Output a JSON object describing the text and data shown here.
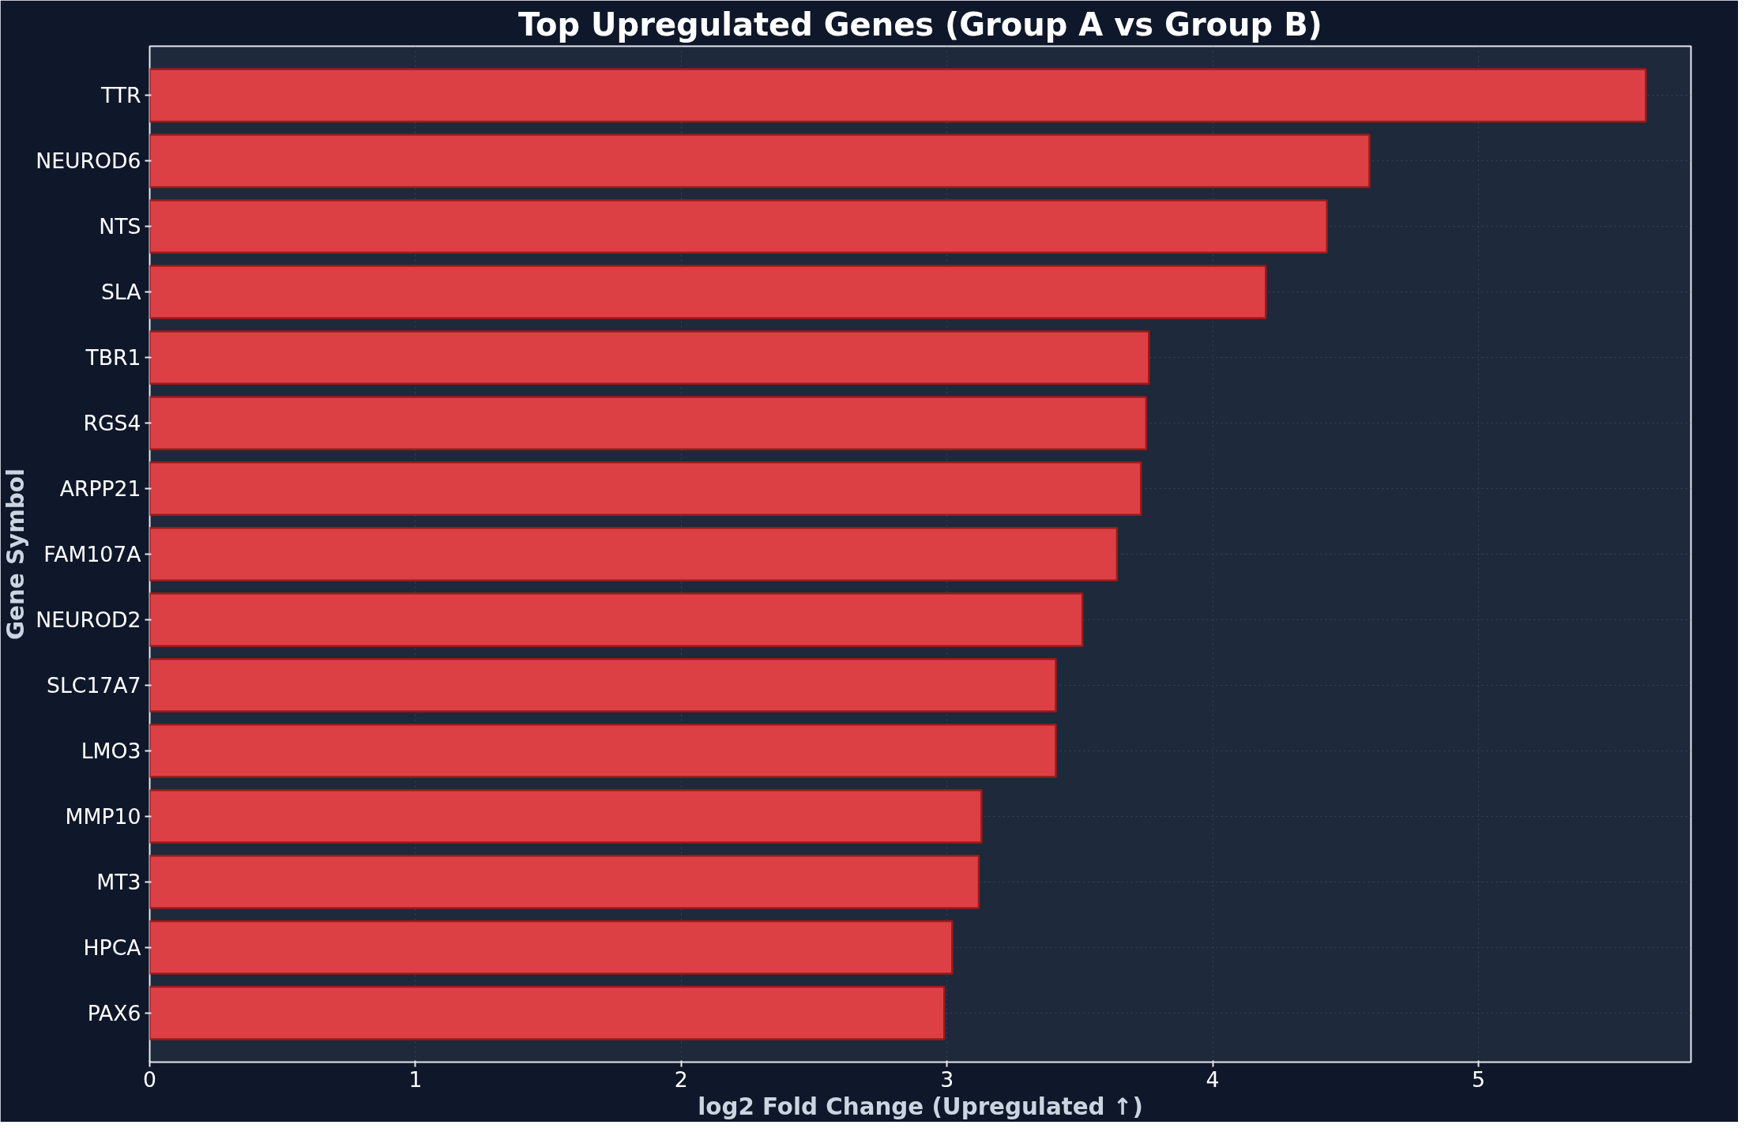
{
  "chart_data": {
    "type": "bar",
    "orientation": "horizontal",
    "title": "Top Upregulated Genes (Group A vs Group B)",
    "xlabel": "log2 Fold Change (Upregulated ↑)",
    "ylabel": "Gene Symbol",
    "categories": [
      "TTR",
      "NEUROD6",
      "NTS",
      "SLA",
      "TBR1",
      "RGS4",
      "ARPP21",
      "FAM107A",
      "NEUROD2",
      "SLC17A7",
      "LMO3",
      "MMP10",
      "MT3",
      "HPCA",
      "PAX6"
    ],
    "values": [
      5.63,
      4.59,
      4.43,
      4.2,
      3.76,
      3.75,
      3.73,
      3.64,
      3.51,
      3.41,
      3.41,
      3.13,
      3.12,
      3.02,
      2.99
    ],
    "color": "#dc4045",
    "xlim": [
      0,
      5.8
    ],
    "xticks": [
      0,
      1,
      2,
      3,
      4,
      5
    ],
    "grid": true
  }
}
